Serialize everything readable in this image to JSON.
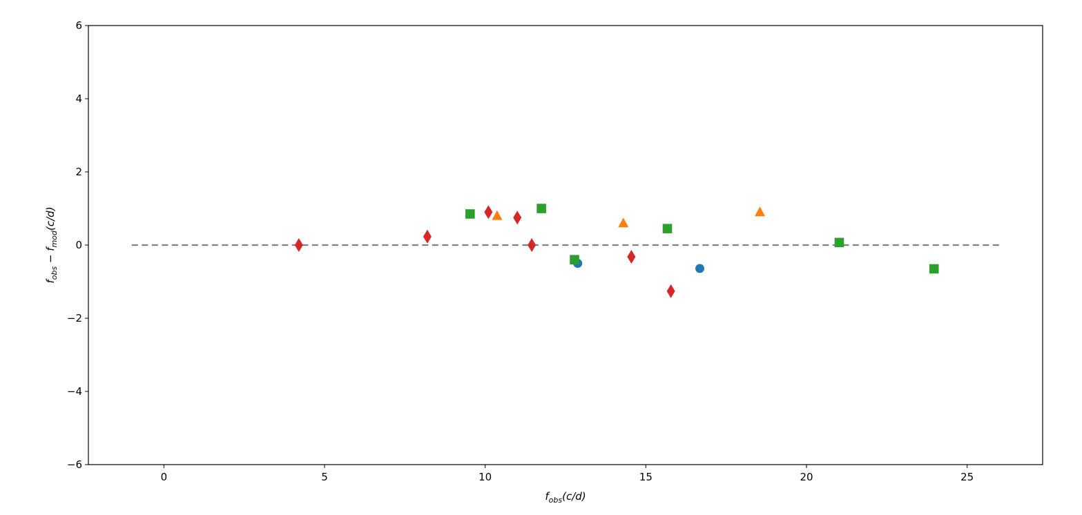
{
  "chart_data": {
    "type": "scatter",
    "title": "",
    "xlabel": "f_obs(c/d)",
    "ylabel": "f_obs − f_mod(c/d)",
    "xlim": [
      -2.35,
      27.35
    ],
    "ylim": [
      -6,
      6
    ],
    "xticks": [
      0,
      5,
      10,
      15,
      20,
      25
    ],
    "yticks": [
      -6,
      -4,
      -2,
      0,
      2,
      4,
      6
    ],
    "xtick_labels": [
      "0",
      "5",
      "10",
      "15",
      "20",
      "25"
    ],
    "ytick_labels": [
      "−6",
      "−4",
      "−2",
      "0",
      "2",
      "4",
      "6"
    ],
    "grid": false,
    "legend": null,
    "reference_line": {
      "y": 0,
      "x_start": -1,
      "x_end": 26,
      "style": "dashed",
      "color": "#808080"
    },
    "series": [
      {
        "name": "circles",
        "marker": "circle",
        "color": "#1f77b4",
        "points": [
          [
            12.88,
            -0.5
          ],
          [
            16.68,
            -0.64
          ]
        ]
      },
      {
        "name": "triangles",
        "marker": "triangle",
        "color": "#ff7f0e",
        "points": [
          [
            10.37,
            0.8
          ],
          [
            14.3,
            0.6
          ],
          [
            18.55,
            0.9
          ]
        ]
      },
      {
        "name": "squares",
        "marker": "square",
        "color": "#2ca02c",
        "points": [
          [
            9.53,
            0.85
          ],
          [
            11.75,
            1.0
          ],
          [
            12.78,
            -0.4
          ],
          [
            15.67,
            0.45
          ],
          [
            21.02,
            0.07
          ],
          [
            23.97,
            -0.65
          ]
        ]
      },
      {
        "name": "diamonds",
        "marker": "diamond",
        "color": "#d62728",
        "points": [
          [
            4.2,
            0.0
          ],
          [
            8.2,
            0.23
          ],
          [
            10.1,
            0.9
          ],
          [
            11.0,
            0.75
          ],
          [
            11.45,
            0.0
          ],
          [
            14.55,
            -0.32
          ],
          [
            15.78,
            -1.26
          ]
        ]
      }
    ]
  },
  "axes": {
    "xlabel_main": "f",
    "xlabel_sub": "obs",
    "xlabel_units": "(c/d)",
    "ylabel_main1": "f",
    "ylabel_sub1": "obs",
    "ylabel_minus": " − ",
    "ylabel_main2": "f",
    "ylabel_sub2": "mod",
    "ylabel_units": "(c/d)"
  }
}
